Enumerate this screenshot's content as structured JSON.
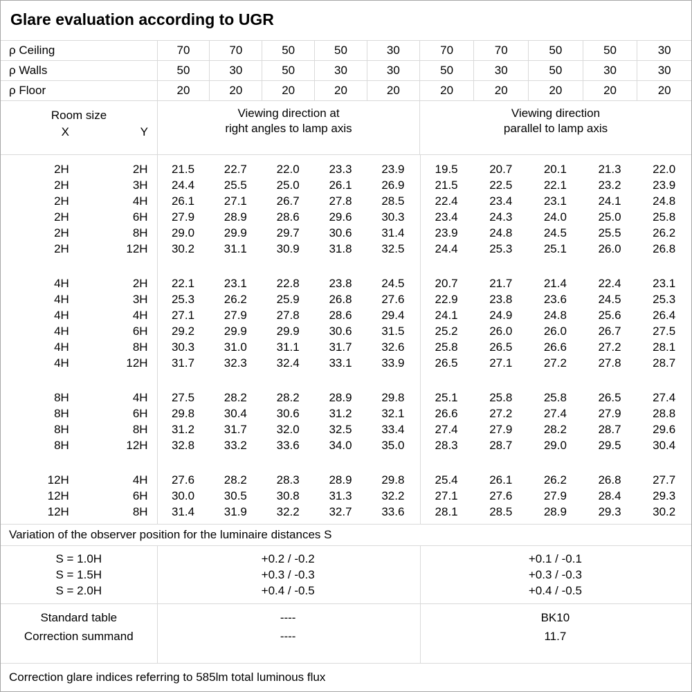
{
  "title": "Glare evaluation according to UGR",
  "colors": {
    "grid_line": "#d9d9d9",
    "outer_border": "#a6a6a6",
    "text": "#000000",
    "background": "#ffffff"
  },
  "reflectance_rows": [
    {
      "label": "ρ Ceiling",
      "values": [
        "70",
        "70",
        "50",
        "50",
        "30",
        "70",
        "70",
        "50",
        "50",
        "30"
      ]
    },
    {
      "label": "ρ Walls",
      "values": [
        "50",
        "30",
        "50",
        "30",
        "30",
        "50",
        "30",
        "50",
        "30",
        "30"
      ]
    },
    {
      "label": "ρ Floor",
      "values": [
        "20",
        "20",
        "20",
        "20",
        "20",
        "20",
        "20",
        "20",
        "20",
        "20"
      ]
    }
  ],
  "room_header": {
    "title": "Room size",
    "x_label": "X",
    "y_label": "Y"
  },
  "headers": {
    "viewing_perpendicular": [
      "Viewing direction at",
      "right angles to lamp axis"
    ],
    "viewing_parallel": [
      "Viewing direction",
      "parallel to lamp axis"
    ]
  },
  "data_blocks": [
    {
      "rows": [
        {
          "x": "2H",
          "y": "2H",
          "perpendicular": [
            "21.5",
            "22.7",
            "22.0",
            "23.3",
            "23.9"
          ],
          "parallel": [
            "19.5",
            "20.7",
            "20.1",
            "21.3",
            "22.0"
          ]
        },
        {
          "x": "2H",
          "y": "3H",
          "perpendicular": [
            "24.4",
            "25.5",
            "25.0",
            "26.1",
            "26.9"
          ],
          "parallel": [
            "21.5",
            "22.5",
            "22.1",
            "23.2",
            "23.9"
          ]
        },
        {
          "x": "2H",
          "y": "4H",
          "perpendicular": [
            "26.1",
            "27.1",
            "26.7",
            "27.8",
            "28.5"
          ],
          "parallel": [
            "22.4",
            "23.4",
            "23.1",
            "24.1",
            "24.8"
          ]
        },
        {
          "x": "2H",
          "y": "6H",
          "perpendicular": [
            "27.9",
            "28.9",
            "28.6",
            "29.6",
            "30.3"
          ],
          "parallel": [
            "23.4",
            "24.3",
            "24.0",
            "25.0",
            "25.8"
          ]
        },
        {
          "x": "2H",
          "y": "8H",
          "perpendicular": [
            "29.0",
            "29.9",
            "29.7",
            "30.6",
            "31.4"
          ],
          "parallel": [
            "23.9",
            "24.8",
            "24.5",
            "25.5",
            "26.2"
          ]
        },
        {
          "x": "2H",
          "y": "12H",
          "perpendicular": [
            "30.2",
            "31.1",
            "30.9",
            "31.8",
            "32.5"
          ],
          "parallel": [
            "24.4",
            "25.3",
            "25.1",
            "26.0",
            "26.8"
          ]
        }
      ]
    },
    {
      "rows": [
        {
          "x": "4H",
          "y": "2H",
          "perpendicular": [
            "22.1",
            "23.1",
            "22.8",
            "23.8",
            "24.5"
          ],
          "parallel": [
            "20.7",
            "21.7",
            "21.4",
            "22.4",
            "23.1"
          ]
        },
        {
          "x": "4H",
          "y": "3H",
          "perpendicular": [
            "25.3",
            "26.2",
            "25.9",
            "26.8",
            "27.6"
          ],
          "parallel": [
            "22.9",
            "23.8",
            "23.6",
            "24.5",
            "25.3"
          ]
        },
        {
          "x": "4H",
          "y": "4H",
          "perpendicular": [
            "27.1",
            "27.9",
            "27.8",
            "28.6",
            "29.4"
          ],
          "parallel": [
            "24.1",
            "24.9",
            "24.8",
            "25.6",
            "26.4"
          ]
        },
        {
          "x": "4H",
          "y": "6H",
          "perpendicular": [
            "29.2",
            "29.9",
            "29.9",
            "30.6",
            "31.5"
          ],
          "parallel": [
            "25.2",
            "26.0",
            "26.0",
            "26.7",
            "27.5"
          ]
        },
        {
          "x": "4H",
          "y": "8H",
          "perpendicular": [
            "30.3",
            "31.0",
            "31.1",
            "31.7",
            "32.6"
          ],
          "parallel": [
            "25.8",
            "26.5",
            "26.6",
            "27.2",
            "28.1"
          ]
        },
        {
          "x": "4H",
          "y": "12H",
          "perpendicular": [
            "31.7",
            "32.3",
            "32.4",
            "33.1",
            "33.9"
          ],
          "parallel": [
            "26.5",
            "27.1",
            "27.2",
            "27.8",
            "28.7"
          ]
        }
      ]
    },
    {
      "rows": [
        {
          "x": "8H",
          "y": "4H",
          "perpendicular": [
            "27.5",
            "28.2",
            "28.2",
            "28.9",
            "29.8"
          ],
          "parallel": [
            "25.1",
            "25.8",
            "25.8",
            "26.5",
            "27.4"
          ]
        },
        {
          "x": "8H",
          "y": "6H",
          "perpendicular": [
            "29.8",
            "30.4",
            "30.6",
            "31.2",
            "32.1"
          ],
          "parallel": [
            "26.6",
            "27.2",
            "27.4",
            "27.9",
            "28.8"
          ]
        },
        {
          "x": "8H",
          "y": "8H",
          "perpendicular": [
            "31.2",
            "31.7",
            "32.0",
            "32.5",
            "33.4"
          ],
          "parallel": [
            "27.4",
            "27.9",
            "28.2",
            "28.7",
            "29.6"
          ]
        },
        {
          "x": "8H",
          "y": "12H",
          "perpendicular": [
            "32.8",
            "33.2",
            "33.6",
            "34.0",
            "35.0"
          ],
          "parallel": [
            "28.3",
            "28.7",
            "29.0",
            "29.5",
            "30.4"
          ]
        }
      ]
    },
    {
      "rows": [
        {
          "x": "12H",
          "y": "4H",
          "perpendicular": [
            "27.6",
            "28.2",
            "28.3",
            "28.9",
            "29.8"
          ],
          "parallel": [
            "25.4",
            "26.1",
            "26.2",
            "26.8",
            "27.7"
          ]
        },
        {
          "x": "12H",
          "y": "6H",
          "perpendicular": [
            "30.0",
            "30.5",
            "30.8",
            "31.3",
            "32.2"
          ],
          "parallel": [
            "27.1",
            "27.6",
            "27.9",
            "28.4",
            "29.3"
          ]
        },
        {
          "x": "12H",
          "y": "8H",
          "perpendicular": [
            "31.4",
            "31.9",
            "32.2",
            "32.7",
            "33.6"
          ],
          "parallel": [
            "28.1",
            "28.5",
            "28.9",
            "29.3",
            "30.2"
          ]
        }
      ]
    }
  ],
  "variation_note": "Variation of the observer position for the luminaire distances S",
  "s_rows": [
    {
      "label": "S = 1.0H",
      "perpendicular": "+0.2 / -0.2",
      "parallel": "+0.1 / -0.1"
    },
    {
      "label": "S = 1.5H",
      "perpendicular": "+0.3 / -0.3",
      "parallel": "+0.3 / -0.3"
    },
    {
      "label": "S = 2.0H",
      "perpendicular": "+0.4 / -0.5",
      "parallel": "+0.4 / -0.5"
    }
  ],
  "summary_rows": [
    {
      "label": "Standard table",
      "perpendicular": "----",
      "parallel": "BK10"
    },
    {
      "label": "Correction summand",
      "perpendicular": "----",
      "parallel": "11.7"
    }
  ],
  "footer_note": "Correction glare indices referring to 585lm total luminous flux"
}
